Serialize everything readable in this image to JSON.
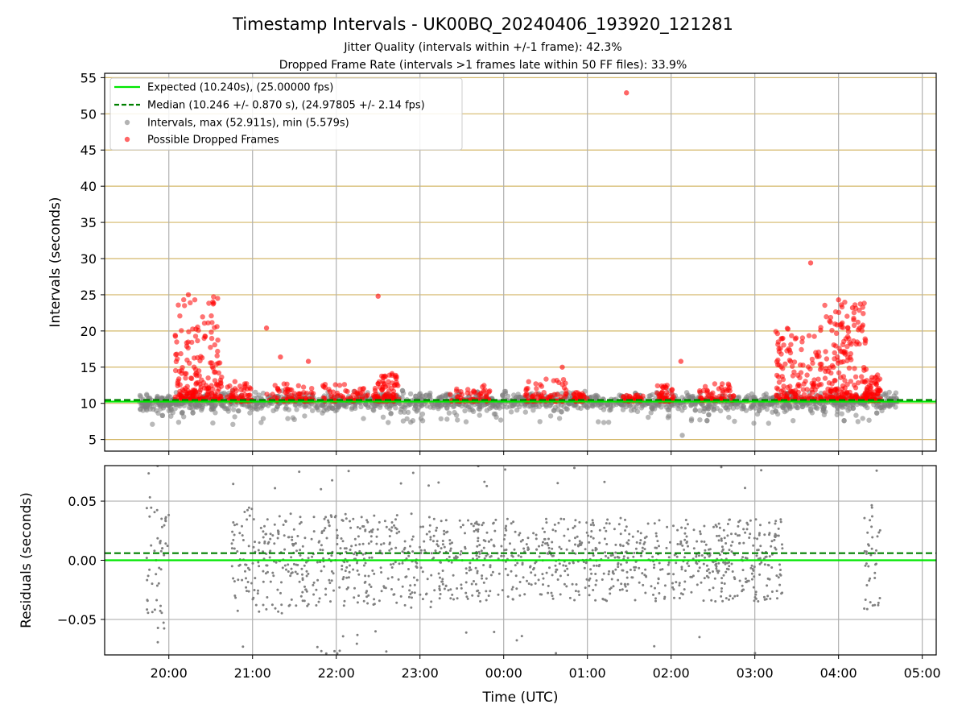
{
  "figure": {
    "title": "Timestamp Intervals - UK00BQ_20240406_193920_121281",
    "subtitle_1": "Jitter Quality (intervals within +/-1 frame): 42.3%",
    "subtitle_2": "Dropped Frame Rate (intervals >1 frames late within 50 FF files): 33.9%"
  },
  "colors": {
    "expected": "#00e600",
    "median": "#008000",
    "intervals": "#808080",
    "dropped": "#ff0000",
    "h_grid": "#d4b86a",
    "v_grid": "#b0b0b0"
  },
  "chart_data": [
    {
      "type": "scatter",
      "name": "intervals",
      "xlabel": "",
      "ylabel": "Intervals (seconds)",
      "xlim": [
        "19:14",
        "05:10"
      ],
      "ylim": [
        3.4,
        55.6
      ],
      "yticks": [
        5,
        10,
        15,
        20,
        25,
        30,
        35,
        40,
        45,
        50,
        55
      ],
      "xticks": [
        "20:00",
        "21:00",
        "22:00",
        "23:00",
        "00:00",
        "01:00",
        "02:00",
        "03:00",
        "04:00",
        "05:00"
      ],
      "grid": "horizontal and vertical",
      "legend_position": "top-left",
      "legend": [
        "Expected (10.240s), (25.00000 fps)",
        "Median (10.246 +/- 0.870 s), (24.97805 +/- 2.14 fps)",
        "Intervals, max (52.911s), min (5.579s)",
        "Possible Dropped Frames"
      ],
      "expected_interval": 10.24,
      "median_interval": 10.246,
      "interval_range": [
        "19:39",
        "04:42"
      ],
      "max_interval": {
        "time": "01:28",
        "value": 52.911
      },
      "min_interval": {
        "time": "02:08",
        "value": 5.579
      },
      "dropped_clusters": [
        {
          "start": "20:04",
          "end": "20:38",
          "low": 10.5,
          "high": 25.0
        },
        {
          "start": "20:42",
          "end": "21:00",
          "low": 10.3,
          "high": 13.0
        },
        {
          "start": "21:10",
          "end": "21:45",
          "low": 10.3,
          "high": 13.0
        },
        {
          "start": "21:50",
          "end": "22:30",
          "low": 10.3,
          "high": 12.8
        },
        {
          "start": "22:30",
          "end": "22:45",
          "low": 10.3,
          "high": 14.0
        },
        {
          "start": "23:20",
          "end": "23:50",
          "low": 10.3,
          "high": 12.5
        },
        {
          "start": "00:15",
          "end": "00:45",
          "low": 10.3,
          "high": 13.5
        },
        {
          "start": "00:50",
          "end": "01:00",
          "low": 10.3,
          "high": 11.5
        },
        {
          "start": "01:25",
          "end": "01:40",
          "low": 10.3,
          "high": 11.2
        },
        {
          "start": "01:50",
          "end": "02:02",
          "low": 10.3,
          "high": 12.5
        },
        {
          "start": "02:20",
          "end": "02:45",
          "low": 10.4,
          "high": 12.8
        },
        {
          "start": "03:15",
          "end": "03:48",
          "low": 10.5,
          "high": 20.5
        },
        {
          "start": "03:50",
          "end": "04:20",
          "low": 10.5,
          "high": 24.0
        },
        {
          "start": "04:20",
          "end": "04:30",
          "low": 10.4,
          "high": 14.0
        }
      ],
      "dropped_outliers": [
        {
          "time": "01:28",
          "value": 52.9
        },
        {
          "time": "03:40",
          "value": 29.4
        },
        {
          "time": "22:30",
          "value": 24.8
        },
        {
          "time": "20:14",
          "value": 25.0
        },
        {
          "time": "21:10",
          "value": 20.4
        },
        {
          "time": "21:20",
          "value": 16.4
        },
        {
          "time": "21:40",
          "value": 15.8
        },
        {
          "time": "00:42",
          "value": 15.0
        },
        {
          "time": "02:07",
          "value": 15.8
        },
        {
          "time": "22:40",
          "value": 14.1
        },
        {
          "time": "04:00",
          "value": 24.3
        },
        {
          "time": "04:10",
          "value": 23.2
        },
        {
          "time": "04:15",
          "value": 20.4
        }
      ]
    },
    {
      "type": "scatter",
      "name": "residuals",
      "xlabel": "Time (UTC)",
      "ylabel": "Residuals (seconds)",
      "xlim": [
        "19:14",
        "05:10"
      ],
      "ylim": [
        -0.08,
        0.08
      ],
      "yticks": [
        0.05,
        0.0,
        -0.05
      ],
      "ytick_labels": [
        "0.05",
        "0.00",
        "−0.05"
      ],
      "xticks": [
        "20:00",
        "21:00",
        "22:00",
        "23:00",
        "00:00",
        "01:00",
        "02:00",
        "03:00",
        "04:00",
        "05:00"
      ],
      "expected_residual": 0.0,
      "median_residual": 0.006,
      "segments": [
        {
          "start": "19:44",
          "end": "20:00",
          "spread": 0.06
        },
        {
          "start": "20:45",
          "end": "21:35",
          "spread": 0.045
        },
        {
          "start": "21:35",
          "end": "23:10",
          "spread": 0.04
        },
        {
          "start": "23:10",
          "end": "03:20",
          "spread": 0.035
        },
        {
          "start": "04:18",
          "end": "04:30",
          "spread": 0.05
        }
      ]
    }
  ]
}
